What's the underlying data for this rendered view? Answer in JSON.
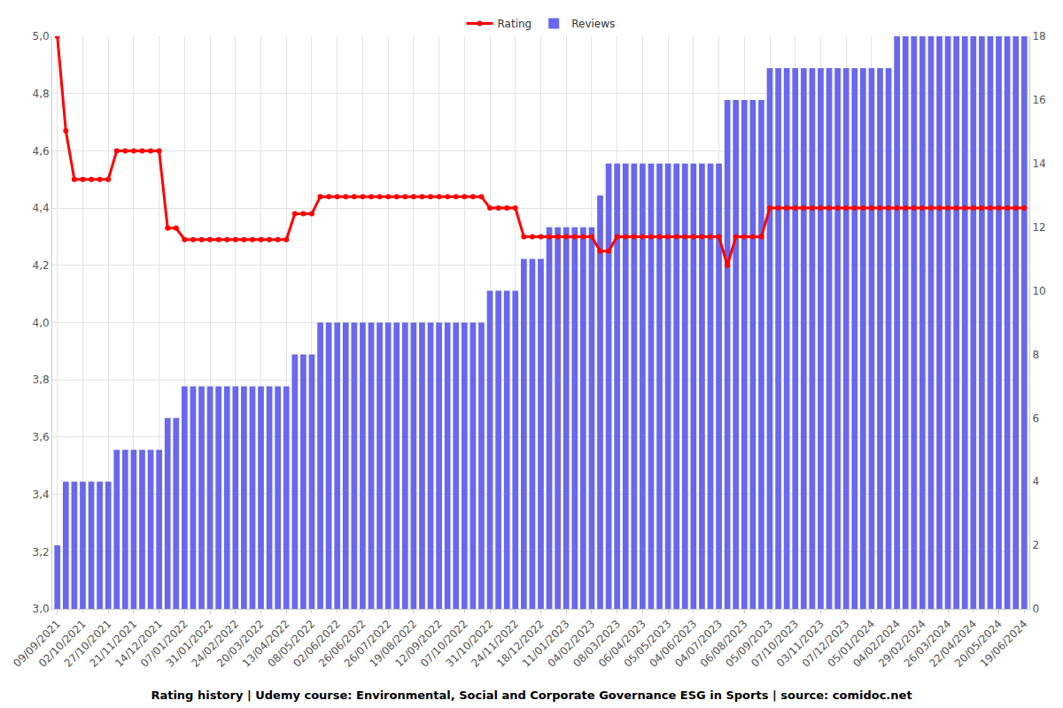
{
  "chart_data": {
    "type": "bar",
    "title": "Rating history | Udemy course: Environmental, Social and Corporate Governance ESG in Sports | source: comidoc.net",
    "categories": [
      "09/09/2021",
      null,
      null,
      "02/10/2021",
      null,
      null,
      "27/10/2021",
      null,
      null,
      "21/11/2021",
      null,
      null,
      "14/12/2021",
      null,
      null,
      "07/01/2022",
      null,
      null,
      "31/01/2022",
      null,
      null,
      "24/02/2022",
      null,
      null,
      "20/03/2022",
      null,
      null,
      "13/04/2022",
      null,
      null,
      "08/05/2022",
      null,
      null,
      "02/06/2022",
      null,
      null,
      "26/06/2022",
      null,
      null,
      "26/07/2022",
      null,
      null,
      "19/08/2022",
      null,
      null,
      "12/09/2022",
      null,
      null,
      "07/10/2022",
      null,
      null,
      "31/10/2022",
      null,
      null,
      "24/11/2022",
      null,
      null,
      "18/12/2022",
      null,
      null,
      "11/01/2023",
      null,
      null,
      "04/02/2023",
      null,
      null,
      "08/03/2023",
      null,
      null,
      "06/04/2023",
      null,
      null,
      "05/05/2023",
      null,
      null,
      "04/06/2023",
      null,
      null,
      "04/07/2023",
      null,
      null,
      "06/08/2023",
      null,
      null,
      "05/09/2023",
      null,
      null,
      "07/10/2023",
      null,
      null,
      "03/11/2023",
      null,
      null,
      "07/12/2023",
      null,
      null,
      "05/01/2024",
      null,
      null,
      "04/02/2024",
      null,
      null,
      "29/02/2024",
      null,
      null,
      "26/03/2024",
      null,
      null,
      "22/04/2024",
      null,
      null,
      "20/05/2024",
      null,
      null,
      "19/06/2024"
    ],
    "series": [
      {
        "name": "Rating",
        "type": "line",
        "color": "#ff0000",
        "marker": "circle",
        "line_style": "solid",
        "values": [
          5.0,
          4.67,
          4.5,
          4.5,
          4.5,
          4.5,
          4.5,
          4.6,
          4.6,
          4.6,
          4.6,
          4.6,
          4.6,
          4.33,
          4.33,
          4.29,
          4.29,
          4.29,
          4.29,
          4.29,
          4.29,
          4.29,
          4.29,
          4.29,
          4.29,
          4.29,
          4.29,
          4.29,
          4.38,
          4.38,
          4.38,
          4.44,
          4.44,
          4.44,
          4.44,
          4.44,
          4.44,
          4.44,
          4.44,
          4.44,
          4.44,
          4.44,
          4.44,
          4.44,
          4.44,
          4.44,
          4.44,
          4.44,
          4.44,
          4.44,
          4.44,
          4.4,
          4.4,
          4.4,
          4.4,
          4.3,
          4.3,
          4.3,
          4.3,
          4.3,
          4.3,
          4.3,
          4.3,
          4.3,
          4.25,
          4.25,
          4.3,
          4.3,
          4.3,
          4.3,
          4.3,
          4.3,
          4.3,
          4.3,
          4.3,
          4.3,
          4.3,
          4.3,
          4.3,
          4.2,
          4.3,
          4.3,
          4.3,
          4.3,
          4.4,
          4.4,
          4.4,
          4.4,
          4.4,
          4.4,
          4.4,
          4.4,
          4.4,
          4.4,
          4.4,
          4.4,
          4.4,
          4.4,
          4.4,
          4.4,
          4.4,
          4.4,
          4.4,
          4.4,
          4.4,
          4.4,
          4.4,
          4.4,
          4.4,
          4.4,
          4.4,
          4.4,
          4.4,
          4.4,
          4.4
        ]
      },
      {
        "name": "Reviews",
        "type": "bar",
        "color": "#6868ee",
        "axis": "y2",
        "values": [
          2,
          4,
          4,
          4,
          4,
          4,
          4,
          5,
          5,
          5,
          5,
          5,
          5,
          6,
          6,
          7,
          7,
          7,
          7,
          7,
          7,
          7,
          7,
          7,
          7,
          7,
          7,
          7,
          8,
          8,
          8,
          9,
          9,
          9,
          9,
          9,
          9,
          9,
          9,
          9,
          9,
          9,
          9,
          9,
          9,
          9,
          9,
          9,
          9,
          9,
          9,
          10,
          10,
          10,
          10,
          11,
          11,
          11,
          12,
          12,
          12,
          12,
          12,
          12,
          13,
          14,
          14,
          14,
          14,
          14,
          14,
          14,
          14,
          14,
          14,
          14,
          14,
          14,
          14,
          16,
          16,
          16,
          16,
          16,
          17,
          17,
          17,
          17,
          17,
          17,
          17,
          17,
          17,
          17,
          17,
          17,
          17,
          17,
          17,
          18,
          18,
          18,
          18,
          18,
          18,
          18,
          18,
          18,
          18,
          18,
          18,
          18,
          18,
          18,
          18
        ]
      }
    ],
    "ylim": [
      3,
      5
    ],
    "yticks": [
      {
        "value": 3,
        "label": "3,0"
      },
      {
        "value": 3.2,
        "label": "3,2"
      },
      {
        "value": 3.4,
        "label": "3,4"
      },
      {
        "value": 3.6,
        "label": "3,6"
      },
      {
        "value": 3.8,
        "label": "3,8"
      },
      {
        "value": 4,
        "label": "4,0"
      },
      {
        "value": 4.2,
        "label": "4,2"
      },
      {
        "value": 4.4,
        "label": "4,4"
      },
      {
        "value": 4.6,
        "label": "4,6"
      },
      {
        "value": 4.8,
        "label": "4,8"
      },
      {
        "value": 5,
        "label": "5,0"
      }
    ],
    "y2lim": [
      0,
      18
    ],
    "y2ticks": [
      0,
      2,
      4,
      6,
      8,
      10,
      12,
      14,
      16,
      18
    ],
    "grid": true,
    "legend": "top"
  }
}
